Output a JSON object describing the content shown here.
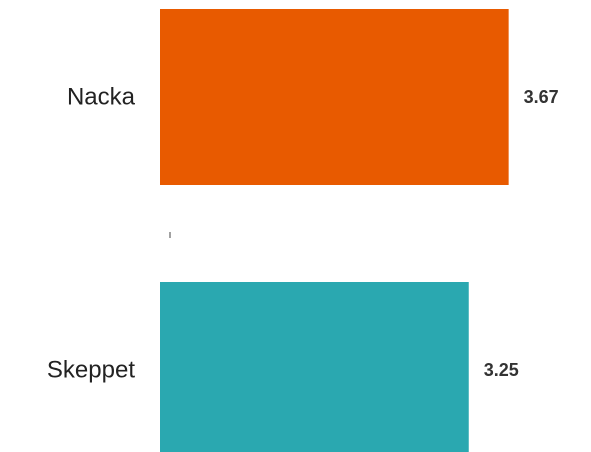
{
  "chart_data": {
    "type": "bar",
    "orientation": "horizontal",
    "categories": [
      "Nacka",
      "Skeppet"
    ],
    "values": [
      3.67,
      3.25
    ],
    "value_labels": [
      "3.67",
      "3.25"
    ],
    "colors": [
      "#E85A00",
      "#2AA8B0"
    ],
    "xlim": [
      0,
      4.0
    ],
    "title": "",
    "xlabel": "",
    "ylabel": "",
    "grid": false,
    "legend": "none"
  }
}
